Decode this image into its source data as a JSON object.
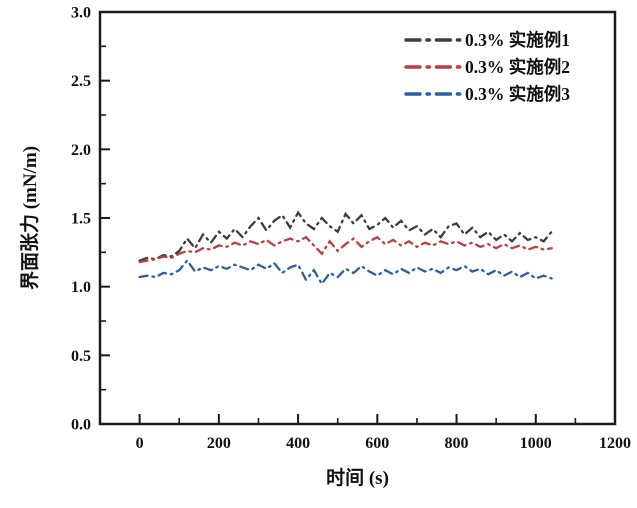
{
  "chart_data": {
    "type": "line",
    "title": "",
    "xlabel": "时间 (s)",
    "ylabel": "界面张力 (mN/m)",
    "xlim": [
      -100,
      1200
    ],
    "ylim": [
      0,
      3
    ],
    "x_ticks": [
      0,
      200,
      400,
      600,
      800,
      1000,
      1200
    ],
    "x_minor_ticks": [
      100,
      300,
      500,
      700,
      900,
      1100
    ],
    "y_ticks": [
      "0.0",
      "0.5",
      "1.0",
      "1.5",
      "2.0",
      "2.5",
      "3.0"
    ],
    "y_minor_ticks": [
      0.25,
      0.75,
      1.25,
      1.75,
      2.25,
      2.75
    ],
    "grid": false,
    "legend_position": "top-right",
    "line_style": "dash-dot",
    "axis_color": "#1a1a1a",
    "x": [
      0,
      20,
      40,
      60,
      80,
      100,
      120,
      140,
      160,
      180,
      200,
      220,
      240,
      260,
      280,
      300,
      320,
      340,
      360,
      380,
      400,
      420,
      440,
      460,
      480,
      500,
      520,
      540,
      560,
      580,
      600,
      620,
      640,
      660,
      680,
      700,
      720,
      740,
      760,
      780,
      800,
      820,
      840,
      860,
      880,
      900,
      920,
      940,
      960,
      980,
      1000,
      1020,
      1040
    ],
    "series": [
      {
        "name": "0.3% 实施例1",
        "color": "#3d3d3d",
        "values": [
          1.19,
          1.21,
          1.2,
          1.23,
          1.22,
          1.26,
          1.35,
          1.28,
          1.38,
          1.32,
          1.4,
          1.35,
          1.42,
          1.36,
          1.44,
          1.5,
          1.41,
          1.48,
          1.52,
          1.43,
          1.54,
          1.46,
          1.42,
          1.5,
          1.44,
          1.4,
          1.53,
          1.46,
          1.52,
          1.42,
          1.45,
          1.5,
          1.43,
          1.48,
          1.41,
          1.44,
          1.38,
          1.42,
          1.36,
          1.44,
          1.46,
          1.38,
          1.43,
          1.36,
          1.4,
          1.34,
          1.38,
          1.33,
          1.39,
          1.34,
          1.36,
          1.33,
          1.4
        ]
      },
      {
        "name": "0.3% 实施例2",
        "color": "#c03c3e",
        "values": [
          1.18,
          1.19,
          1.2,
          1.22,
          1.21,
          1.24,
          1.26,
          1.25,
          1.28,
          1.27,
          1.3,
          1.29,
          1.32,
          1.3,
          1.33,
          1.31,
          1.34,
          1.3,
          1.33,
          1.35,
          1.33,
          1.36,
          1.3,
          1.24,
          1.33,
          1.26,
          1.31,
          1.35,
          1.29,
          1.33,
          1.36,
          1.31,
          1.34,
          1.3,
          1.33,
          1.29,
          1.32,
          1.3,
          1.33,
          1.31,
          1.33,
          1.3,
          1.32,
          1.29,
          1.31,
          1.28,
          1.31,
          1.28,
          1.3,
          1.27,
          1.29,
          1.27,
          1.28
        ]
      },
      {
        "name": "0.3% 实施例3",
        "color": "#2b5fa5",
        "values": [
          1.07,
          1.08,
          1.07,
          1.1,
          1.09,
          1.12,
          1.19,
          1.11,
          1.14,
          1.12,
          1.15,
          1.13,
          1.16,
          1.14,
          1.12,
          1.16,
          1.13,
          1.17,
          1.1,
          1.14,
          1.16,
          1.05,
          1.12,
          1.02,
          1.1,
          1.07,
          1.13,
          1.1,
          1.15,
          1.11,
          1.08,
          1.12,
          1.09,
          1.13,
          1.1,
          1.14,
          1.11,
          1.13,
          1.1,
          1.14,
          1.12,
          1.15,
          1.11,
          1.13,
          1.09,
          1.12,
          1.08,
          1.11,
          1.07,
          1.1,
          1.06,
          1.08,
          1.06
        ]
      }
    ]
  }
}
